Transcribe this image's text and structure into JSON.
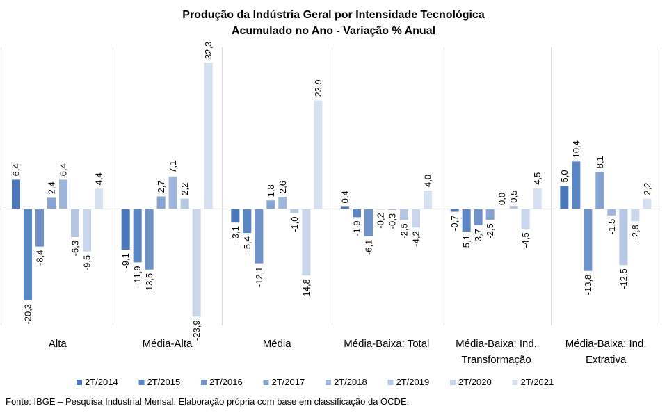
{
  "chart_data": {
    "type": "bar",
    "title": "Produção da Indústria Geral por Intensidade Tecnológica",
    "subtitle": "Acumulado no Ano - Variação % Anual",
    "categories": [
      {
        "line1": "Alta",
        "line2": ""
      },
      {
        "line1": "Média-Alta",
        "line2": ""
      },
      {
        "line1": "Média",
        "line2": ""
      },
      {
        "line1": "Média-Baixa: Total",
        "line2": ""
      },
      {
        "line1": "Média-Baixa: Ind.",
        "line2": "Transformação"
      },
      {
        "line1": "Média-Baixa: Ind.",
        "line2": "Extrativa"
      }
    ],
    "series": [
      {
        "name": "2T/2014",
        "color": "#4a78bb",
        "values": [
          6.4,
          -9.1,
          -3.1,
          0.4,
          -0.7,
          5.0
        ],
        "labels": [
          "6,4",
          "-9,1",
          "-3,1",
          "0,4",
          "-0,7",
          "5,0"
        ]
      },
      {
        "name": "2T/2015",
        "color": "#5a86c3",
        "values": [
          -20.3,
          -11.9,
          -5.4,
          -1.9,
          -5.1,
          10.4
        ],
        "labels": [
          "-20,3",
          "-11,9",
          "-5,4",
          "-1,9",
          "-5,1",
          "10,4"
        ]
      },
      {
        "name": "2T/2016",
        "color": "#6f93c9",
        "values": [
          -8.4,
          -13.5,
          -12.1,
          -6.1,
          -3.7,
          -13.8
        ],
        "labels": [
          "-8,4",
          "-13,5",
          "-12,1",
          "-6,1",
          "-3,7",
          "-13,8"
        ]
      },
      {
        "name": "2T/2017",
        "color": "#86a4d2",
        "values": [
          2.4,
          2.7,
          1.8,
          -0.2,
          -2.5,
          8.1
        ],
        "labels": [
          "2,4",
          "2,7",
          "1,8",
          "-0,2",
          "-2,5",
          "8,1"
        ]
      },
      {
        "name": "2T/2018",
        "color": "#9db6da",
        "values": [
          6.4,
          7.1,
          2.6,
          -0.3,
          0.0,
          -1.5
        ],
        "labels": [
          "6,4",
          "7,1",
          "2,6",
          "-0,3",
          "0,0",
          "-1,5"
        ]
      },
      {
        "name": "2T/2019",
        "color": "#b5c7e3",
        "values": [
          -6.3,
          2.2,
          -1.0,
          -2.5,
          0.5,
          -12.5
        ],
        "labels": [
          "-6,3",
          "2,2",
          "-1,0",
          "-2,5",
          "0,5",
          "-12,5"
        ]
      },
      {
        "name": "2T/2020",
        "color": "#c8d5ea",
        "values": [
          -9.5,
          -23.9,
          -14.8,
          -4.2,
          -4.5,
          -2.8
        ],
        "labels": [
          "-9,5",
          "-23,9",
          "-14,8",
          "-4,2",
          "-4,5",
          "-2,8"
        ]
      },
      {
        "name": "2T/2021",
        "color": "#d5e0f0",
        "values": [
          4.4,
          32.3,
          23.9,
          4.0,
          4.5,
          2.2
        ],
        "labels": [
          "4,4",
          "32,3",
          "23,9",
          "4,0",
          "4,5",
          "2,2"
        ]
      }
    ],
    "ylim": [
      -26,
      34
    ],
    "grid": false,
    "legend_position": "bottom",
    "label_orientation": "vertical"
  },
  "footer": "Fonte: IBGE – Pesquisa Industrial Mensal. Elaboração própria com base em classificação da OCDE."
}
